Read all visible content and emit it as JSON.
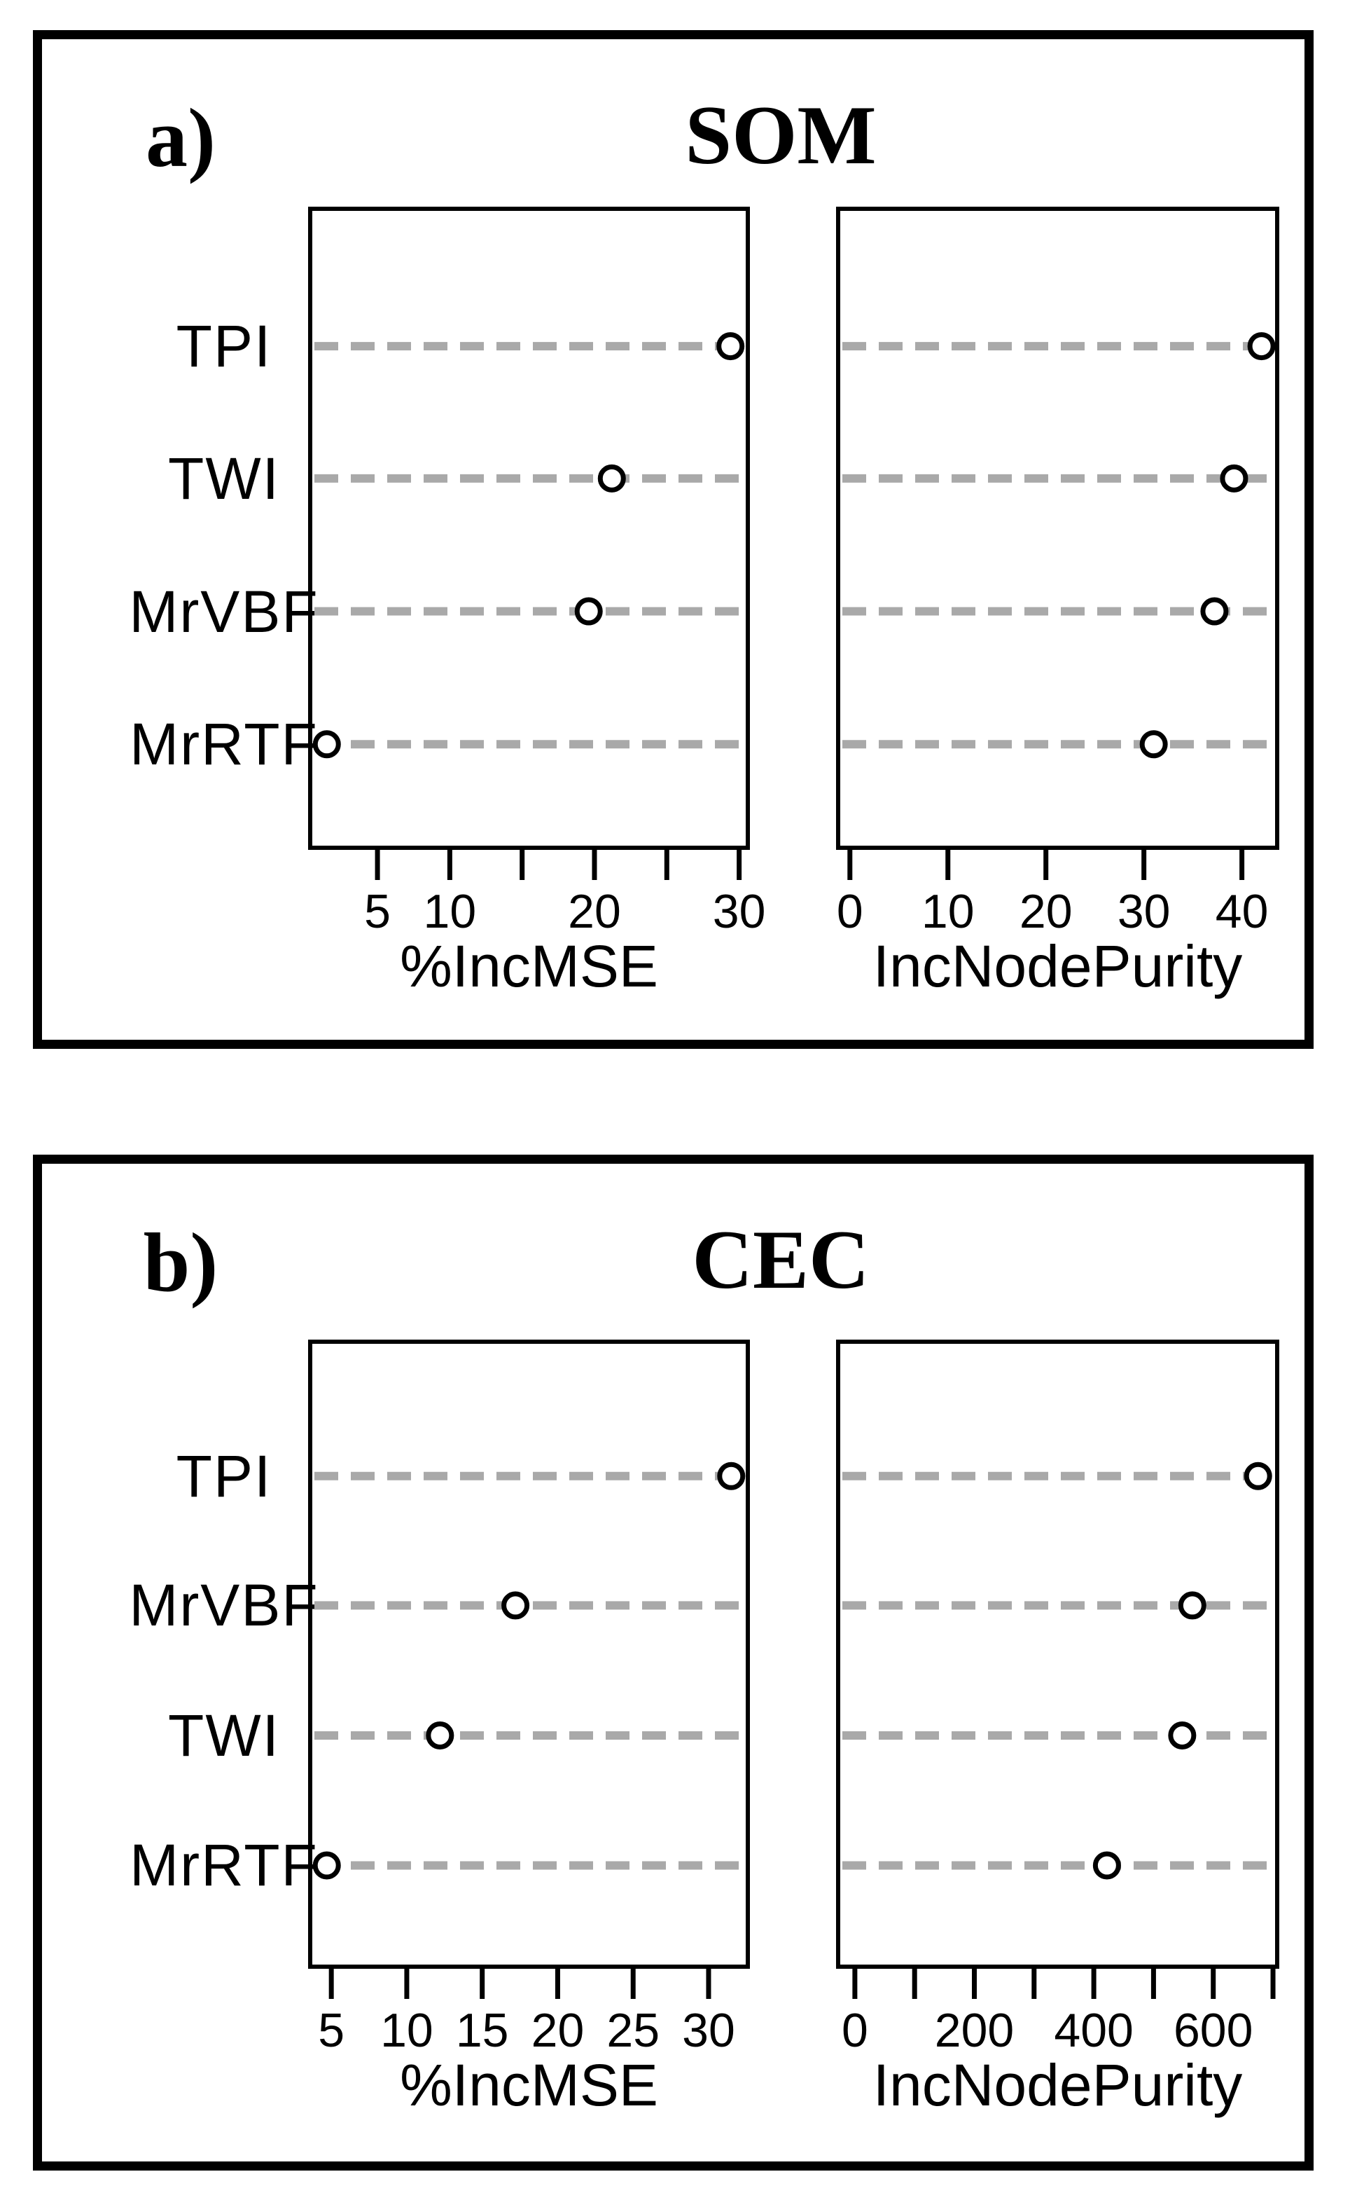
{
  "figure": {
    "description": "Random forest variable importance dot plots",
    "background": "#ffffff",
    "line_color": "#000000",
    "dash_color": "#a9a9a9",
    "point_style": "open-circle"
  },
  "chart_data": [
    {
      "panel": "a",
      "letter": "a)",
      "title": "SOM",
      "type": "scatter",
      "categories": [
        "TPI",
        "TWI",
        "MrVBF",
        "MrRTF"
      ],
      "grid": "horizontal-dashed",
      "legend": "none",
      "subplots": [
        {
          "xlabel": "%IncMSE",
          "xlim": [
            0.35,
            30.6
          ],
          "xticks": [
            5,
            10,
            15,
            20,
            25,
            30
          ],
          "xtick_labels": [
            "5",
            "10",
            "",
            "20",
            "",
            "30"
          ],
          "values": [
            29.4,
            21.2,
            19.6,
            1.5
          ]
        },
        {
          "xlabel": "IncNodePurity",
          "xlim": [
            -1.2,
            43.6
          ],
          "xticks": [
            0,
            10,
            20,
            30,
            40
          ],
          "xtick_labels": [
            "0",
            "10",
            "20",
            "30",
            "40"
          ],
          "values": [
            42,
            39.2,
            37.2,
            31
          ]
        }
      ]
    },
    {
      "panel": "b",
      "letter": "b)",
      "title": "CEC",
      "type": "scatter",
      "categories": [
        "TPI",
        "MrVBF",
        "TWI",
        "MrRTF"
      ],
      "grid": "horizontal-dashed",
      "legend": "none",
      "subplots": [
        {
          "xlabel": "%IncMSE",
          "xlim": [
            3.6,
            32.6
          ],
          "xticks": [
            5,
            10,
            15,
            20,
            25,
            30
          ],
          "xtick_labels": [
            "5",
            "10",
            "15",
            "20",
            "25",
            "30"
          ],
          "values": [
            31.5,
            17.2,
            12.2,
            4.7
          ]
        },
        {
          "xlabel": "IncNodePurity",
          "xlim": [
            -28,
            707
          ],
          "xticks": [
            0,
            100,
            200,
            300,
            400,
            500,
            600,
            700
          ],
          "xtick_labels": [
            "0",
            "",
            "200",
            "",
            "400",
            "",
            "600",
            ""
          ],
          "values": [
            675,
            565,
            548,
            422
          ]
        }
      ]
    }
  ]
}
